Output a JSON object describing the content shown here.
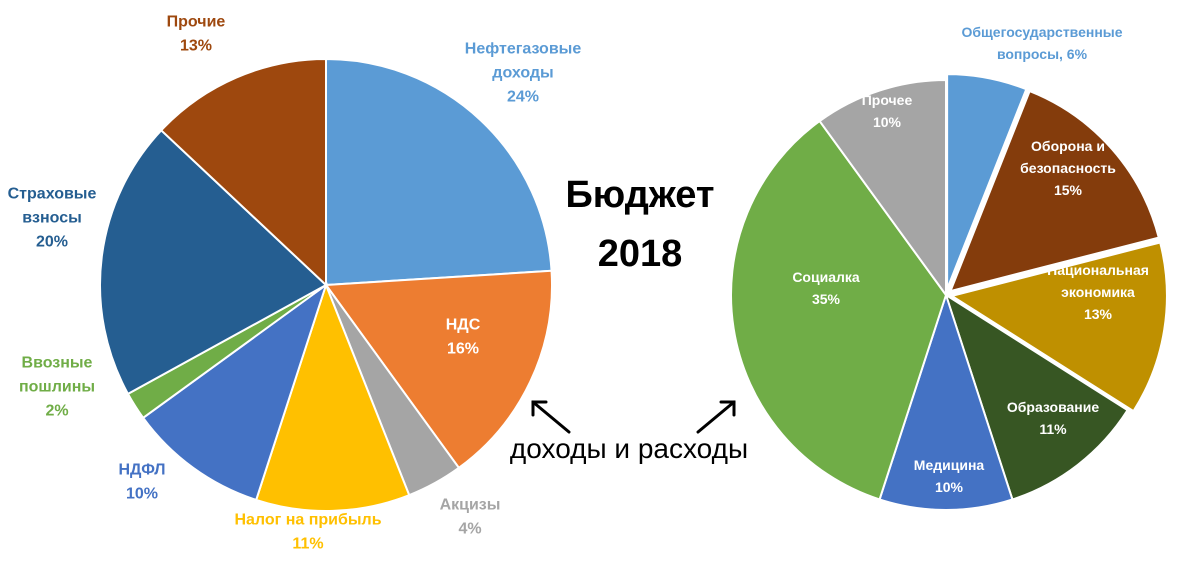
{
  "title_line1": "Бюджет",
  "title_line2": "2018",
  "caption": "доходы и расходы",
  "chart_data": [
    {
      "type": "pie",
      "slices": [
        {
          "lines": [
            "Нефтегазовые",
            "доходы",
            "24%"
          ],
          "value": 24,
          "color": "#5B9BD5",
          "text_color": "#5B9BD5"
        },
        {
          "lines": [
            "НДС",
            "16%"
          ],
          "value": 16,
          "color": "#ED7D31",
          "text_color": "#ffffff"
        },
        {
          "lines": [
            "Акцизы",
            "4%"
          ],
          "value": 4,
          "color": "#A5A5A5",
          "text_color": "#A5A5A5"
        },
        {
          "lines": [
            "Налог на прибыль",
            "11%"
          ],
          "value": 11,
          "color": "#FFC000",
          "text_color": "#FFC000"
        },
        {
          "lines": [
            "НДФЛ",
            "10%"
          ],
          "value": 10,
          "color": "#4472C4",
          "text_color": "#4472C4"
        },
        {
          "lines": [
            "Ввозные",
            "пошлины",
            "2%"
          ],
          "value": 2,
          "color": "#70AD47",
          "text_color": "#70AD47"
        },
        {
          "lines": [
            "Страховые",
            "взносы",
            "20%"
          ],
          "value": 20,
          "color": "#255E91",
          "text_color": "#255E91"
        },
        {
          "lines": [
            "Прочие",
            "13%"
          ],
          "value": 13,
          "color": "#9E480E",
          "text_color": "#9E480E"
        }
      ]
    },
    {
      "type": "pie",
      "slices": [
        {
          "lines": [
            "Общегосударственные",
            "вопросы, 6%"
          ],
          "value": 6,
          "color": "#5B9BD5",
          "text_color": "#5B9BD5"
        },
        {
          "lines": [
            "Оборона и",
            "безопасность",
            "15%"
          ],
          "value": 15,
          "color": "#843C0C",
          "text_color": "#ffffff"
        },
        {
          "lines": [
            "Национальная",
            "экономика",
            "13%"
          ],
          "value": 13,
          "color": "#BF9000",
          "text_color": "#ffffff"
        },
        {
          "lines": [
            "Образование",
            "11%"
          ],
          "value": 11,
          "color": "#375623",
          "text_color": "#ffffff"
        },
        {
          "lines": [
            "Медицина",
            "10%"
          ],
          "value": 10,
          "color": "#4472C4",
          "text_color": "#ffffff"
        },
        {
          "lines": [
            "Социалка",
            "35%"
          ],
          "value": 35,
          "color": "#70AD47",
          "text_color": "#ffffff"
        },
        {
          "lines": [
            "Прочее",
            "10%"
          ],
          "value": 10,
          "color": "#A5A5A5",
          "text_color": "#ffffff"
        }
      ]
    }
  ]
}
